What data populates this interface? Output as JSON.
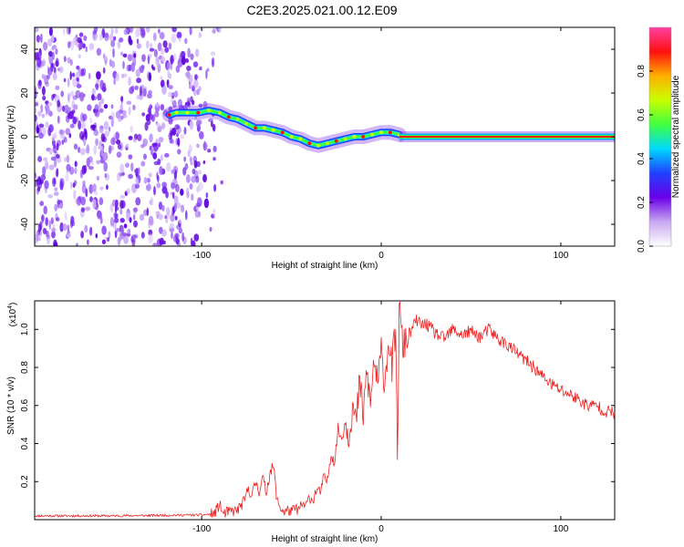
{
  "figure": {
    "title": "C2E3.2025.021.00.12.E09"
  },
  "chart_data": [
    {
      "type": "heatmap",
      "xlabel": "Height of straight line (km)",
      "ylabel": "Frequency (Hz)",
      "xlim": [
        -193,
        130
      ],
      "ylim": [
        -50,
        50
      ],
      "xticks": [
        -100,
        0,
        100
      ],
      "yticks": [
        -40,
        -20,
        0,
        20,
        40
      ],
      "colorbar": {
        "label": "Normalized spectral amplitude",
        "range": [
          0,
          1
        ],
        "ticks": [
          0.0,
          0.2,
          0.4,
          0.6,
          0.8
        ],
        "colors": [
          "#ffffff",
          "#c8a8f0",
          "#6a00e8",
          "#2040ff",
          "#00d8ff",
          "#40ff40",
          "#c8ff00",
          "#ffb000",
          "#ff1010",
          "#ff40a0"
        ]
      },
      "ridge": {
        "x": [
          -118,
          -114,
          -108,
          -102,
          -96,
          -90,
          -85,
          -80,
          -75,
          -70,
          -65,
          -60,
          -55,
          -50,
          -45,
          -40,
          -35,
          -30,
          -25,
          -20,
          -15,
          -10,
          -5,
          0,
          5,
          10
        ],
        "y": [
          10,
          11,
          11,
          11,
          12,
          11,
          9,
          8,
          6,
          4,
          4,
          3,
          2,
          0,
          -1,
          -3,
          -4,
          -3,
          -2,
          -1,
          0,
          0,
          1,
          2,
          2,
          1
        ]
      },
      "line_segment": {
        "x": [
          10,
          130
        ],
        "y": [
          0,
          0
        ]
      },
      "noise_region_x": [
        -193,
        -88
      ]
    },
    {
      "type": "line",
      "xlabel": "Height of straight line (km)",
      "ylabel": "SNR (10 * v/v)",
      "exponent_label": "(x10",
      "exponent_power": "4",
      "exponent_close": ")",
      "xlim": [
        -193,
        130
      ],
      "ylim": [
        0,
        1.15
      ],
      "xticks": [
        -100,
        0,
        100
      ],
      "yticks": [
        0.2,
        0.4,
        0.6,
        0.8,
        1.0
      ],
      "ytick_labels": [
        "0.2",
        "0.4",
        "0.6",
        "0.8",
        "1.0"
      ],
      "series": [
        {
          "color": "#ee2222",
          "x": [
            -193,
            -150,
            -100,
            -93,
            -90,
            -88,
            -85,
            -80,
            -76,
            -74,
            -72,
            -70,
            -68,
            -66,
            -64,
            -62,
            -60,
            -58,
            -56,
            -54,
            -52,
            -50,
            -48,
            -46,
            -44,
            -42,
            -40,
            -38,
            -36,
            -34,
            -32,
            -30,
            -28,
            -26,
            -24,
            -22,
            -20,
            -18,
            -16,
            -14,
            -12,
            -10,
            -8,
            -6,
            -4,
            -2,
            0,
            2,
            4,
            6,
            8,
            9,
            10,
            12,
            14,
            16,
            18,
            20,
            22,
            25,
            30,
            35,
            40,
            45,
            50,
            55,
            60,
            65,
            70,
            75,
            80,
            85,
            90,
            95,
            100,
            105,
            110,
            115,
            120,
            125,
            130
          ],
          "y": [
            0.02,
            0.02,
            0.025,
            0.03,
            0.08,
            0.03,
            0.04,
            0.05,
            0.1,
            0.17,
            0.12,
            0.2,
            0.15,
            0.22,
            0.14,
            0.25,
            0.28,
            0.1,
            0.06,
            0.04,
            0.05,
            0.04,
            0.06,
            0.05,
            0.08,
            0.07,
            0.12,
            0.1,
            0.16,
            0.14,
            0.22,
            0.2,
            0.35,
            0.3,
            0.48,
            0.42,
            0.52,
            0.45,
            0.6,
            0.5,
            0.72,
            0.55,
            0.78,
            0.6,
            0.85,
            0.7,
            0.88,
            0.72,
            0.95,
            0.8,
            1.0,
            0.32,
            1.12,
            0.9,
            0.95,
            0.98,
            1.02,
            1.05,
            1.02,
            1.03,
            0.98,
            0.95,
            1.0,
            0.97,
            0.99,
            0.96,
            1.0,
            0.95,
            0.92,
            0.88,
            0.84,
            0.8,
            0.75,
            0.71,
            0.68,
            0.66,
            0.63,
            0.6,
            0.6,
            0.57,
            0.56
          ]
        }
      ]
    }
  ]
}
